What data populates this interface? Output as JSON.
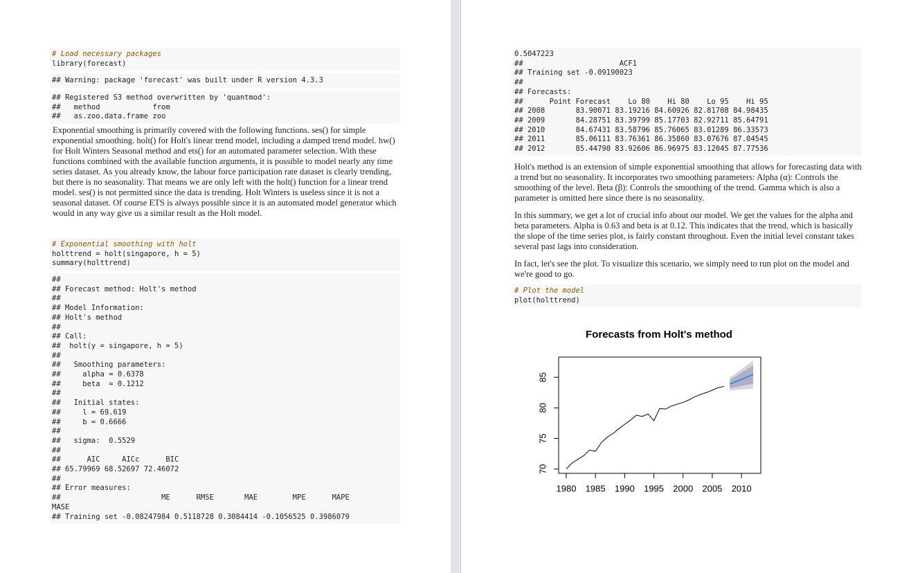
{
  "left_page": {
    "code_load": [
      "# Load necessary packages",
      "library(forecast)"
    ],
    "warning": [
      "## Warning: package 'forecast' was built under R version 4.3.3"
    ],
    "registered": [
      "## Registered S3 method overwritten by 'quantmod':",
      "##   method            from",
      "##   as.zoo.data.frame zoo"
    ],
    "paragraph": "Exponential smoothing is primarily covered with the following functions. ses() for simple exponential smoothing. holt() for Holt's linear trend model, including a damped trend model. hw() for Holt Winters Seasonal method and ets() for an automated parameter selection. With these functions combined with the available function arguments, it is possible to model nearly any time series dataset. As you already know, the labour force participation rate dataset is clearly trending, but there is no seasonality. That means we are only left with the holt() function for a linear trend model. ses() is not permitted since the data is trending. Holt Winters is useless since it is not a seasonal dataset. Of course ETS is always possible since it is an automated model generator which would in any way give us a similar result as the Holt model.",
    "code_holt": [
      "# Exponential smoothing with holt",
      "holttrend = holt(singapore, h = 5)",
      "summary(holttrend)"
    ],
    "summary_output": [
      "##",
      "## Forecast method: Holt's method",
      "##",
      "## Model Information:",
      "## Holt's method",
      "##",
      "## Call:",
      "##  holt(y = singapore, h = 5)",
      "##",
      "##   Smoothing parameters:",
      "##     alpha = 0.6378",
      "##     beta  = 0.1212",
      "##",
      "##   Initial states:",
      "##     l = 69.619",
      "##     b = 0.6666",
      "##",
      "##   sigma:  0.5529",
      "##",
      "##      AIC     AICc      BIC",
      "## 65.79969 68.52697 72.46072",
      "##",
      "## Error measures:",
      "##                       ME      RMSE       MAE        MPE      MAPE",
      "MASE",
      "## Training set -0.08247984 0.5118728 0.3084414 -0.1056525 0.3986079"
    ]
  },
  "right_page": {
    "output": [
      "0.5047223",
      "##                      ACF1",
      "## Training set -0.09190023",
      "##",
      "## Forecasts:",
      "##      Point Forecast    Lo 80    Hi 80    Lo 95    Hi 95",
      "## 2008       83.90071 83.19216 84.60926 82.81708 84.98435",
      "## 2009       84.28751 83.39799 85.17703 82.92711 85.64791",
      "## 2010       84.67431 83.58796 85.76065 83.01289 86.33573",
      "## 2011       85.06111 83.76361 86.35860 83.07676 87.04545",
      "## 2012       85.44790 83.92606 86.96975 83.12045 87.77536"
    ],
    "paragraphs": [
      "Holt's method is an extension of simple exponential smoothing that allows for forecasting data with a trend but no seasonality. It incorporates two smoothing parameters: Alpha (α): Controls the smoothing of the level. Beta (β): Controls the smoothing of the trend. Gamma which is also a parameter is omitted here since there is no seasonality.",
      "In this summary, we get a lot of crucial info about our model. We get the values for the alpha and beta parameters. Alpha is 0.63 and beta is at 0.12. This indicates that the trend, which is basically the slope of the time series plot, is fairly constant throughout. Even the initial level constant takes several past lags into consideration.",
      "In fact, let's see the plot. To visualize this scenario, we simply need to run plot on the model and we're good to go."
    ],
    "code_plot": [
      "# Plot the model",
      "plot(holttrend)"
    ]
  },
  "chart_data": {
    "type": "line",
    "title": "Forecasts from Holt's method",
    "xlim": [
      1978.7,
      2013.3
    ],
    "ylim": [
      69.3,
      88.3
    ],
    "xticks": [
      1980,
      1985,
      1990,
      1995,
      2000,
      2005,
      2010
    ],
    "yticks": [
      70,
      75,
      80,
      85
    ],
    "bands": [
      {
        "color": "#d6d5e0",
        "x": [
          2008,
          2009,
          2010,
          2011,
          2012
        ],
        "lower": [
          82.81708,
          82.92711,
          83.01289,
          83.07676,
          83.12045
        ],
        "upper": [
          84.98435,
          85.64791,
          86.33573,
          87.04545,
          87.77536
        ]
      },
      {
        "color": "#b1afc6",
        "x": [
          2008,
          2009,
          2010,
          2011,
          2012
        ],
        "lower": [
          83.19216,
          83.39799,
          83.58796,
          83.76361,
          83.92606
        ],
        "upper": [
          84.60926,
          85.17703,
          85.76065,
          86.3586,
          86.96975
        ]
      }
    ],
    "series": [
      {
        "color": "#000000",
        "x": [
          1980,
          1981,
          1982,
          1983,
          1984,
          1985,
          1986,
          1987,
          1988,
          1989,
          1990,
          1991,
          1992,
          1993,
          1994,
          1995,
          1996,
          1997,
          1998,
          1999,
          2000,
          2001,
          2002,
          2003,
          2004,
          2005,
          2006,
          2007
        ],
        "values": [
          70.0,
          71.0,
          71.6,
          72.2,
          73.1,
          72.9,
          74.3,
          75.2,
          75.8,
          76.6,
          77.3,
          78.0,
          78.8,
          78.6,
          79.0,
          77.9,
          79.9,
          79.8,
          80.3,
          80.6,
          80.9,
          81.3,
          81.8,
          82.2,
          82.5,
          82.9,
          83.3,
          83.5
        ]
      },
      {
        "color": "#3a8fe0",
        "x": [
          2008,
          2009,
          2010,
          2011,
          2012
        ],
        "values": [
          83.90071,
          84.28751,
          84.67431,
          85.06111,
          85.4479
        ]
      }
    ]
  }
}
